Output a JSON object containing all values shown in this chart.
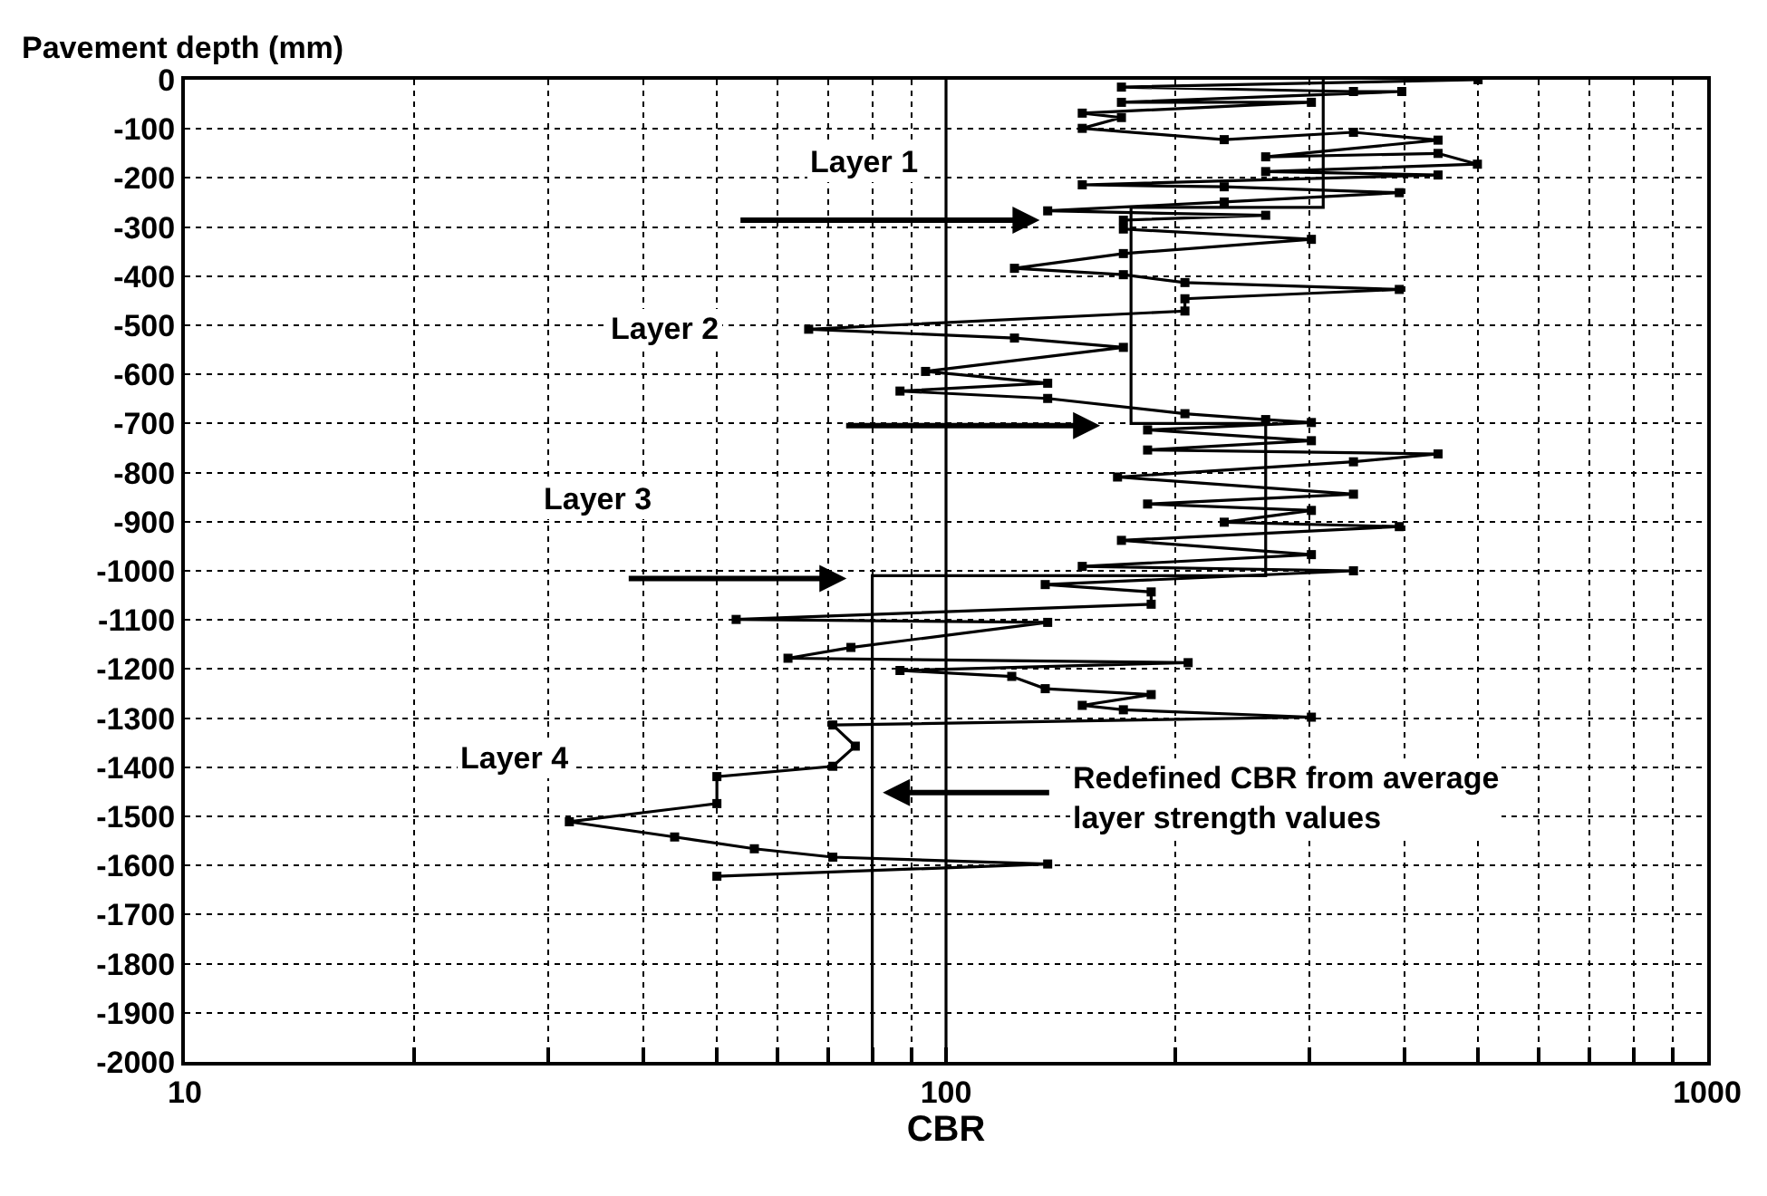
{
  "chart_data": {
    "type": "line",
    "xlabel": "CBR",
    "ylabel": "Pavement depth (mm)",
    "log": "x",
    "xlim": [
      10,
      1000
    ],
    "xticks": [
      10,
      {
        "value": 20,
        "label": null
      },
      {
        "value": 30,
        "label": null
      },
      {
        "value": 40,
        "label": null
      },
      {
        "value": 50,
        "label": null
      },
      {
        "value": 60,
        "label": null
      },
      {
        "value": 70,
        "label": null
      },
      {
        "value": 80,
        "label": null
      },
      {
        "value": 90,
        "label": null
      },
      100,
      {
        "value": 200,
        "label": null
      },
      {
        "value": 300,
        "label": null
      },
      {
        "value": 400,
        "label": null
      },
      {
        "value": 500,
        "label": null
      },
      {
        "value": 600,
        "label": null
      },
      {
        "value": 700,
        "label": null
      },
      {
        "value": 800,
        "label": null
      },
      {
        "value": 900,
        "label": null
      },
      1000
    ],
    "ylim": [
      -2000,
      0
    ],
    "yticks": [
      0,
      -100,
      -200,
      -300,
      -400,
      -500,
      -600,
      -700,
      -800,
      -900,
      -1000,
      -1100,
      -1200,
      -1300,
      -1400,
      -1500,
      -1600,
      -1700,
      -1800,
      -1900,
      -2000
    ],
    "grid": true,
    "series": [
      {
        "color": "#000000",
        "marker": "square",
        "line_style": "solid",
        "x": [
          500,
          170,
          343,
          397,
          170,
          302,
          151,
          170,
          151,
          232,
          343,
          443,
          263,
          443,
          499,
          263,
          443,
          151,
          232,
          394,
          232,
          136,
          263,
          171,
          171,
          302,
          171,
          123,
          171,
          206,
          394,
          206,
          206,
          66,
          123,
          171,
          94,
          136,
          87,
          136,
          206,
          263,
          302,
          184,
          302,
          184,
          443,
          343,
          168,
          343,
          184,
          302,
          232,
          394,
          170,
          302,
          151,
          343,
          135,
          186,
          186,
          53,
          136,
          75,
          62,
          208,
          87,
          122,
          135,
          186,
          151,
          171,
          302,
          71,
          76,
          71,
          50,
          50,
          32,
          44,
          56,
          71,
          136,
          50
        ],
        "values": [
          0,
          -15,
          -24,
          -24,
          -46,
          -46,
          -68,
          -77,
          -99,
          -122,
          -107,
          -123,
          -157,
          -150,
          -172,
          -187,
          -194,
          -214,
          -218,
          -230,
          -249,
          -267,
          -276,
          -286,
          -304,
          -325,
          -354,
          -384,
          -397,
          -413,
          -427,
          -446,
          -471,
          -508,
          -526,
          -545,
          -594,
          -618,
          -634,
          -649,
          -680,
          -692,
          -698,
          -713,
          -735,
          -754,
          -762,
          -778,
          -809,
          -844,
          -864,
          -877,
          -901,
          -910,
          -938,
          -967,
          -991,
          -1000,
          -1028,
          -1043,
          -1068,
          -1099,
          -1105,
          -1156,
          -1178,
          -1187,
          -1203,
          -1215,
          -1240,
          -1252,
          -1274,
          -1283,
          -1298,
          -1314,
          -1357,
          -1398,
          -1419,
          -1474,
          -1511,
          -1542,
          -1566,
          -1583,
          -1597,
          -1622
        ]
      },
      {
        "type": "step",
        "color": "#000000",
        "marker": "none",
        "line_style": "solid",
        "x": [
          313,
          175,
          263,
          80,
          80
        ],
        "values": [
          0,
          -260,
          -700,
          -1010,
          -2000
        ]
      }
    ],
    "ref_lines": [
      {
        "axis": "x",
        "value": 100,
        "color": "#000000",
        "line_style": "solid"
      }
    ],
    "annotations": [
      "Layer 1",
      "Layer 2",
      "Layer 3",
      "Layer 4",
      "Redefined CBR from average\nlayer strength values"
    ]
  }
}
